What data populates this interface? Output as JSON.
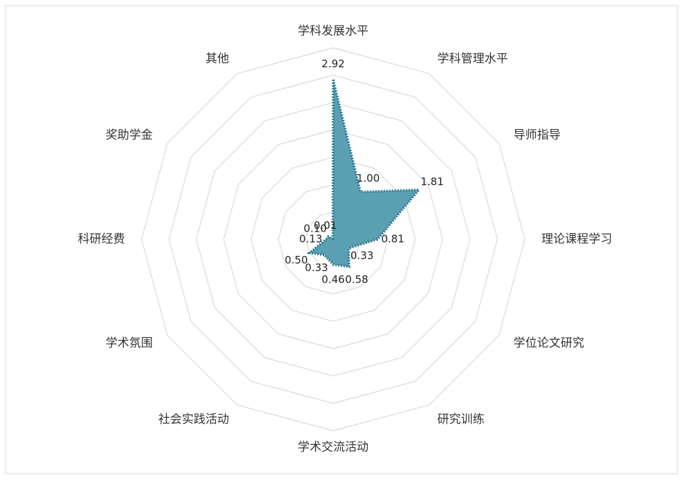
{
  "chart_data": {
    "type": "radar",
    "categories": [
      "学科发展水平",
      "学科管理水平",
      "导师指导",
      "理论课程学习",
      "学位论文研究",
      "研究训练",
      "学术交流活动",
      "社会实践活动",
      "学术氛围",
      "科研经费",
      "奖助学金",
      "其他"
    ],
    "values": [
      2.92,
      1.0,
      1.81,
      0.81,
      0.33,
      0.58,
      0.46,
      0.33,
      0.5,
      0.13,
      0.1,
      0.01
    ],
    "value_labels": [
      "2.92",
      "1.00",
      "1.81",
      "0.81",
      "0.33",
      "0.58",
      "0.46",
      "0.33",
      "0.50",
      "0.13",
      "0.10",
      "0.01"
    ],
    "color": "#5b9fb3",
    "ylim": [
      0,
      3.5
    ],
    "yticks": [
      0,
      0.5,
      1,
      1.5,
      2,
      2.5,
      3,
      3.5
    ],
    "grid": true
  }
}
